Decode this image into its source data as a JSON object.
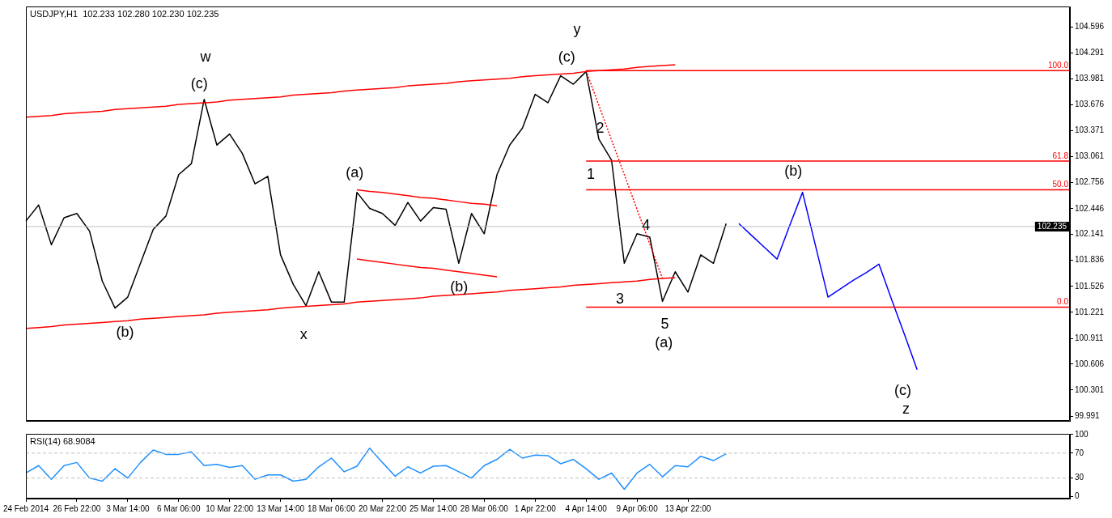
{
  "chart_data": [
    {
      "type": "line",
      "title": "USDJPY,H1  102.233 102.280 102.230 102.235",
      "categories": [
        null,
        null,
        null,
        null,
        null,
        null,
        null,
        null,
        null,
        null,
        null,
        null,
        null,
        null,
        null,
        null,
        null,
        null,
        null,
        null,
        null,
        null,
        null,
        null,
        null,
        null,
        null,
        null,
        null,
        null,
        null,
        null,
        null,
        null,
        null,
        null,
        null,
        null,
        null,
        null,
        null,
        null,
        null,
        null,
        null,
        null,
        null,
        null,
        null,
        null,
        null,
        null,
        null,
        null,
        null,
        null,
        null,
        null,
        null,
        null,
        null,
        null,
        null,
        null,
        null,
        null,
        null,
        null,
        null,
        null,
        null,
        null,
        null,
        null,
        null,
        null,
        null,
        null,
        null,
        null,
        null,
        null,
        null
      ],
      "ylim": [
        99.935,
        104.84
      ],
      "yticks": [
        99.991,
        100.301,
        100.606,
        100.911,
        101.221,
        101.526,
        101.836,
        102.141,
        102.446,
        102.756,
        103.061,
        103.371,
        103.676,
        103.981,
        104.291,
        104.596
      ],
      "tick_labels": "y",
      "ref_lines": [
        {
          "axis": "y",
          "value": 102.235,
          "label": "102.235",
          "color": "#c0c0c0"
        }
      ],
      "series": [
        {
          "color": "#ff0000",
          "values": [
            103.53,
            103.54,
            103.55,
            103.57,
            103.58,
            103.59,
            103.6,
            103.62,
            103.63,
            103.64,
            103.65,
            103.66,
            103.68,
            103.69,
            103.7,
            103.71,
            103.73,
            103.74,
            103.75,
            103.76,
            103.77,
            103.79,
            103.8,
            103.81,
            103.82,
            103.84,
            103.85,
            103.86,
            103.87,
            103.88,
            103.9,
            103.91,
            103.92,
            103.93,
            103.95,
            103.96,
            103.97,
            103.98,
            103.99,
            104.01,
            104.02,
            104.03,
            104.04,
            104.05,
            104.07,
            104.08,
            104.09,
            104.1,
            104.12,
            104.13,
            104.14,
            104.15,
            null,
            null,
            null,
            null,
            null,
            null,
            null,
            null,
            null,
            null,
            null,
            null,
            null,
            null,
            null,
            null,
            null,
            null,
            null,
            null,
            null,
            null,
            null,
            null,
            null,
            null,
            null,
            null,
            null,
            null,
            null
          ]
        },
        {
          "color": "#ff0000",
          "values": [
            101.03,
            101.04,
            101.05,
            101.07,
            101.08,
            101.09,
            101.1,
            101.11,
            101.12,
            101.14,
            101.15,
            101.16,
            101.17,
            101.18,
            101.19,
            101.21,
            101.22,
            101.23,
            101.24,
            101.25,
            101.27,
            101.28,
            101.29,
            101.3,
            101.31,
            101.32,
            101.34,
            101.35,
            101.36,
            101.37,
            101.38,
            101.39,
            101.41,
            101.42,
            101.43,
            101.44,
            101.45,
            101.46,
            101.48,
            101.49,
            101.5,
            101.51,
            101.52,
            101.54,
            101.55,
            101.56,
            101.57,
            101.58,
            101.59,
            101.61,
            101.62,
            101.63,
            null,
            null,
            null,
            null,
            null,
            null,
            null,
            null,
            null,
            null,
            null,
            null,
            null,
            null,
            null,
            null,
            null,
            null,
            null,
            null,
            null,
            null,
            null,
            null,
            null,
            null,
            null,
            null,
            null,
            null,
            null
          ]
        },
        {
          "color": "#ff0000",
          "values": [
            null,
            null,
            null,
            null,
            null,
            null,
            null,
            null,
            null,
            null,
            null,
            null,
            null,
            null,
            null,
            null,
            null,
            null,
            null,
            null,
            null,
            null,
            null,
            null,
            null,
            null,
            102.67,
            102.65,
            102.64,
            102.62,
            102.6,
            102.58,
            102.57,
            102.55,
            102.53,
            102.51,
            102.5,
            102.48,
            null,
            null,
            null,
            null,
            null,
            null,
            null,
            null,
            null,
            null,
            null,
            null,
            null,
            null,
            null,
            null,
            null,
            null,
            null,
            null,
            null,
            null,
            null,
            null,
            null,
            null,
            null,
            null,
            null,
            null,
            null,
            null,
            null,
            null,
            null,
            null,
            null,
            null,
            null,
            null,
            null,
            null,
            null,
            null,
            null
          ]
        },
        {
          "color": "#ff0000",
          "values": [
            null,
            null,
            null,
            null,
            null,
            null,
            null,
            null,
            null,
            null,
            null,
            null,
            null,
            null,
            null,
            null,
            null,
            null,
            null,
            null,
            null,
            null,
            null,
            null,
            null,
            null,
            101.85,
            101.83,
            101.81,
            101.79,
            101.77,
            101.75,
            101.74,
            101.72,
            101.7,
            101.68,
            101.66,
            101.64,
            null,
            null,
            null,
            null,
            null,
            null,
            null,
            null,
            null,
            null,
            null,
            null,
            null,
            null,
            null,
            null,
            null,
            null,
            null,
            null,
            null,
            null,
            null,
            null,
            null,
            null,
            null,
            null,
            null,
            null,
            null,
            null,
            null,
            null,
            null,
            null,
            null,
            null,
            null,
            null,
            null,
            null,
            null,
            null,
            null
          ]
        },
        {
          "color": "#ff0000",
          "line_style": "dotted",
          "values": [
            null,
            null,
            null,
            null,
            null,
            null,
            null,
            null,
            null,
            null,
            null,
            null,
            null,
            null,
            null,
            null,
            null,
            null,
            null,
            null,
            null,
            null,
            null,
            null,
            null,
            null,
            null,
            null,
            null,
            null,
            null,
            null,
            null,
            null,
            null,
            null,
            null,
            null,
            null,
            null,
            null,
            null,
            null,
            null,
            104.08,
            103.67,
            103.26,
            102.85,
            102.44,
            102.03,
            101.62,
            null,
            null,
            null,
            null,
            null,
            null,
            null,
            null,
            null,
            null,
            null,
            null,
            null,
            null,
            null,
            null,
            null,
            null,
            null,
            null,
            null,
            null,
            null,
            null,
            null,
            null,
            null,
            null,
            null,
            null,
            null,
            null
          ]
        },
        {
          "name": "100.0",
          "color": "#ff0000",
          "values": [
            null,
            null,
            null,
            null,
            null,
            null,
            null,
            null,
            null,
            null,
            null,
            null,
            null,
            null,
            null,
            null,
            null,
            null,
            null,
            null,
            null,
            null,
            null,
            null,
            null,
            null,
            null,
            null,
            null,
            null,
            null,
            null,
            null,
            null,
            null,
            null,
            null,
            null,
            null,
            null,
            null,
            null,
            null,
            null,
            104.08,
            104.08,
            104.08,
            104.08,
            104.08,
            104.08,
            104.08,
            104.08,
            104.08,
            104.08,
            104.08,
            104.08,
            104.08,
            104.08,
            104.08,
            104.08,
            104.08,
            104.08,
            104.08,
            104.08,
            104.08,
            104.08,
            104.08,
            104.08,
            104.08,
            104.08,
            104.08,
            104.08,
            104.08,
            104.08,
            104.08,
            104.08,
            104.08,
            104.08,
            104.08,
            104.08,
            104.08,
            104.08,
            104.08
          ]
        },
        {
          "name": "61.8",
          "color": "#ff0000",
          "values": [
            null,
            null,
            null,
            null,
            null,
            null,
            null,
            null,
            null,
            null,
            null,
            null,
            null,
            null,
            null,
            null,
            null,
            null,
            null,
            null,
            null,
            null,
            null,
            null,
            null,
            null,
            null,
            null,
            null,
            null,
            null,
            null,
            null,
            null,
            null,
            null,
            null,
            null,
            null,
            null,
            null,
            null,
            null,
            null,
            103.01,
            103.01,
            103.01,
            103.01,
            103.01,
            103.01,
            103.01,
            103.01,
            103.01,
            103.01,
            103.01,
            103.01,
            103.01,
            103.01,
            103.01,
            103.01,
            103.01,
            103.01,
            103.01,
            103.01,
            103.01,
            103.01,
            103.01,
            103.01,
            103.01,
            103.01,
            103.01,
            103.01,
            103.01,
            103.01,
            103.01,
            103.01,
            103.01,
            103.01,
            103.01,
            103.01,
            103.01,
            103.01,
            103.01
          ]
        },
        {
          "name": "50.0",
          "color": "#ff0000",
          "values": [
            null,
            null,
            null,
            null,
            null,
            null,
            null,
            null,
            null,
            null,
            null,
            null,
            null,
            null,
            null,
            null,
            null,
            null,
            null,
            null,
            null,
            null,
            null,
            null,
            null,
            null,
            null,
            null,
            null,
            null,
            null,
            null,
            null,
            null,
            null,
            null,
            null,
            null,
            null,
            null,
            null,
            null,
            null,
            null,
            102.67,
            102.67,
            102.67,
            102.67,
            102.67,
            102.67,
            102.67,
            102.67,
            102.67,
            102.67,
            102.67,
            102.67,
            102.67,
            102.67,
            102.67,
            102.67,
            102.67,
            102.67,
            102.67,
            102.67,
            102.67,
            102.67,
            102.67,
            102.67,
            102.67,
            102.67,
            102.67,
            102.67,
            102.67,
            102.67,
            102.67,
            102.67,
            102.67,
            102.67,
            102.67,
            102.67,
            102.67,
            102.67,
            102.67
          ]
        },
        {
          "name": "0.0",
          "color": "#ff0000",
          "values": [
            null,
            null,
            null,
            null,
            null,
            null,
            null,
            null,
            null,
            null,
            null,
            null,
            null,
            null,
            null,
            null,
            null,
            null,
            null,
            null,
            null,
            null,
            null,
            null,
            null,
            null,
            null,
            null,
            null,
            null,
            null,
            null,
            null,
            null,
            null,
            null,
            null,
            null,
            null,
            null,
            null,
            null,
            null,
            null,
            101.28,
            101.28,
            101.28,
            101.28,
            101.28,
            101.28,
            101.28,
            101.28,
            101.28,
            101.28,
            101.28,
            101.28,
            101.28,
            101.28,
            101.28,
            101.28,
            101.28,
            101.28,
            101.28,
            101.28,
            101.28,
            101.28,
            101.28,
            101.28,
            101.28,
            101.28,
            101.28,
            101.28,
            101.28,
            101.28,
            101.28,
            101.28,
            101.28,
            101.28,
            101.28,
            101.28,
            101.28,
            101.28,
            101.28
          ]
        },
        {
          "color": "#000000",
          "values": [
            102.3,
            102.49,
            102.02,
            102.34,
            102.39,
            102.18,
            101.59,
            101.27,
            101.4,
            101.8,
            102.2,
            102.36,
            102.85,
            102.98,
            103.74,
            103.2,
            103.33,
            103.1,
            102.74,
            102.83,
            101.9,
            101.55,
            101.3,
            101.7,
            101.34,
            101.34,
            102.64,
            102.45,
            102.39,
            102.25,
            102.52,
            102.3,
            102.46,
            102.44,
            101.8,
            102.39,
            102.15,
            102.85,
            103.2,
            103.4,
            103.8,
            103.7,
            104.02,
            103.92,
            104.07,
            103.27,
            103.02,
            101.8,
            102.15,
            102.11,
            101.35,
            101.7,
            101.46,
            101.9,
            101.8,
            102.27,
            null,
            null,
            null,
            null,
            null,
            null,
            null,
            null,
            null,
            null,
            null,
            null,
            null,
            null,
            null,
            null,
            null,
            null,
            null,
            null,
            null,
            null,
            null,
            null,
            null,
            null,
            null
          ]
        },
        {
          "color": "#0000ff",
          "values": [
            null,
            null,
            null,
            null,
            null,
            null,
            null,
            null,
            null,
            null,
            null,
            null,
            null,
            null,
            null,
            null,
            null,
            null,
            null,
            null,
            null,
            null,
            null,
            null,
            null,
            null,
            null,
            null,
            null,
            null,
            null,
            null,
            null,
            null,
            null,
            null,
            null,
            null,
            null,
            null,
            null,
            null,
            null,
            null,
            null,
            null,
            null,
            null,
            null,
            null,
            null,
            null,
            null,
            null,
            null,
            null,
            102.27,
            102.13,
            101.99,
            101.85,
            102.25,
            102.64,
            102.02,
            101.4,
            101.5,
            101.6,
            101.69,
            101.79,
            101.37,
            100.96,
            100.54,
            null,
            null,
            null,
            null,
            null,
            null,
            null,
            null,
            null,
            null,
            null,
            null
          ]
        }
      ],
      "annotations": [
        "w",
        "(c)",
        "(b)",
        "x",
        "(a)",
        "(b)",
        "y",
        "(c)",
        "1",
        "2",
        "3",
        "4",
        "5",
        "(a)",
        "(b)",
        "(c)",
        "z"
      ]
    },
    {
      "type": "line",
      "title": "RSI(14) 68.9084",
      "categories": [
        "24 Feb 2014",
        null,
        null,
        null,
        "26 Feb 22:00",
        null,
        null,
        null,
        "3 Mar 14:00",
        null,
        null,
        null,
        "6 Mar 06:00",
        null,
        null,
        null,
        "10 Mar 22:00",
        null,
        null,
        null,
        "13 Mar 14:00",
        null,
        null,
        null,
        "18 Mar 06:00",
        null,
        null,
        null,
        "20 Mar 22:00",
        null,
        null,
        null,
        "25 Mar 14:00",
        null,
        null,
        null,
        "28 Mar 06:00",
        null,
        null,
        null,
        "1 Apr 22:00",
        null,
        null,
        null,
        "4 Apr 14:00",
        null,
        null,
        null,
        "9 Apr 06:00",
        null,
        null,
        null,
        "13 Apr 22:00",
        null,
        null,
        null,
        null,
        null,
        null,
        null,
        null,
        null,
        null,
        null,
        null,
        null,
        null,
        null,
        null,
        null,
        null,
        null,
        null,
        null,
        null,
        null,
        null,
        null,
        null,
        null,
        null,
        null,
        null
      ],
      "ylim": [
        -3,
        101
      ],
      "yticks": [
        0,
        30,
        70,
        100
      ],
      "ref_lines": [
        {
          "axis": "y",
          "value": 70,
          "color": "#c0c0c0",
          "line_style": "dashed"
        },
        {
          "axis": "y",
          "value": 30,
          "color": "#c0c0c0",
          "line_style": "dashed"
        }
      ],
      "series": [
        {
          "color": "#1e90ff",
          "values": [
            38,
            50,
            28,
            50,
            55,
            30,
            25,
            45,
            30,
            55,
            75,
            68,
            68,
            72,
            50,
            52,
            47,
            50,
            28,
            35,
            35,
            25,
            28,
            48,
            62,
            40,
            49,
            78,
            55,
            33,
            48,
            38,
            49,
            50,
            40,
            30,
            50,
            60,
            76,
            62,
            67,
            66,
            53,
            60,
            45,
            28,
            38,
            12,
            38,
            52,
            32,
            50,
            48,
            65,
            58,
            69,
            null,
            null,
            null,
            null,
            null,
            null,
            null,
            null,
            null,
            null,
            null,
            null,
            null,
            null,
            null,
            null,
            null,
            null,
            null,
            null,
            null,
            null,
            null,
            null,
            null,
            null,
            null
          ]
        }
      ]
    }
  ]
}
